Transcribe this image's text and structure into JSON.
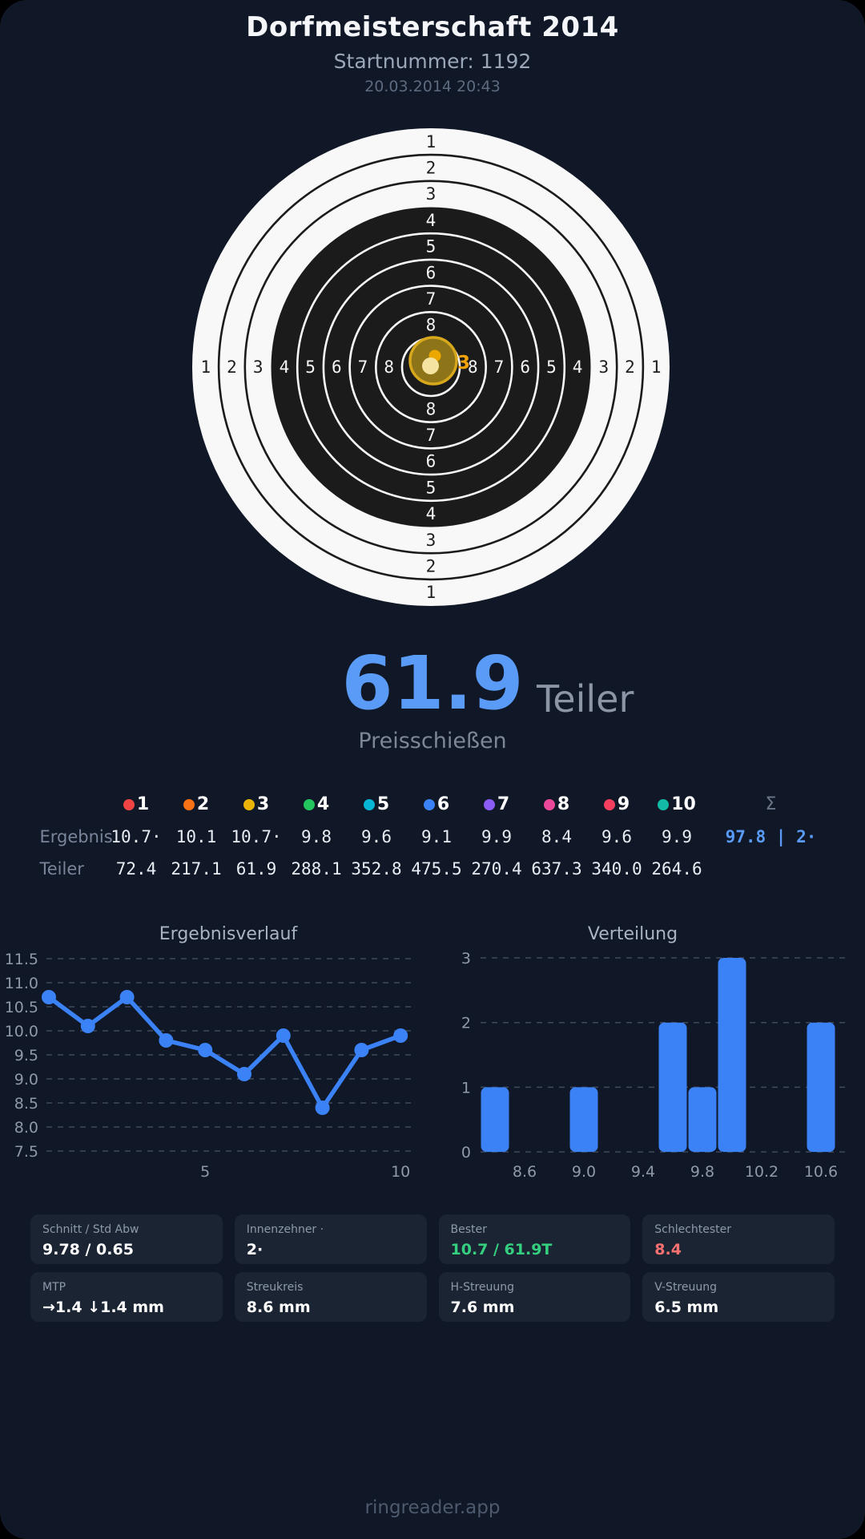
{
  "header": {
    "title": "Dorfmeisterschaft 2014",
    "subtitle": "Startnummer: 1192",
    "datetime": "20.03.2014 20:43"
  },
  "score": {
    "value": "61.9",
    "unit": "Teiler",
    "event": "Preisschießen"
  },
  "target": {
    "ring_labels": [
      "1",
      "2",
      "3",
      "4",
      "5",
      "6",
      "7",
      "8"
    ],
    "shot_marker": {
      "label": "3",
      "label_color": "#f2a208",
      "ring_color": "#d8a81c",
      "fill_color": "#8d7418"
    }
  },
  "table": {
    "ergebnis_label": "Ergebnis",
    "teiler_label": "Teiler",
    "sum_symbol": "Σ",
    "sum_value": "97.8 | 2·"
  },
  "shots": [
    {
      "nr": "1",
      "color": "#ef4444",
      "ergebnis": "10.7·",
      "teiler": "72.4"
    },
    {
      "nr": "2",
      "color": "#f97316",
      "ergebnis": "10.1",
      "teiler": "217.1"
    },
    {
      "nr": "3",
      "color": "#eab308",
      "ergebnis": "10.7·",
      "teiler": "61.9"
    },
    {
      "nr": "4",
      "color": "#22c55e",
      "ergebnis": "9.8",
      "teiler": "288.1"
    },
    {
      "nr": "5",
      "color": "#06b6d4",
      "ergebnis": "9.6",
      "teiler": "352.8"
    },
    {
      "nr": "6",
      "color": "#3b82f6",
      "ergebnis": "9.1",
      "teiler": "475.5"
    },
    {
      "nr": "7",
      "color": "#8b5cf6",
      "ergebnis": "9.9",
      "teiler": "270.4"
    },
    {
      "nr": "8",
      "color": "#ec4899",
      "ergebnis": "8.4",
      "teiler": "637.3"
    },
    {
      "nr": "9",
      "color": "#f43f5e",
      "ergebnis": "9.6",
      "teiler": "340.0"
    },
    {
      "nr": "10",
      "color": "#14b8a6",
      "ergebnis": "9.9",
      "teiler": "264.6"
    }
  ],
  "chart_data": [
    {
      "type": "line",
      "title": "Ergebnisverlauf",
      "x": [
        1,
        2,
        3,
        4,
        5,
        6,
        7,
        8,
        9,
        10
      ],
      "values": [
        10.7,
        10.1,
        10.7,
        9.8,
        9.6,
        9.1,
        9.9,
        8.4,
        9.6,
        9.9
      ],
      "ylim": [
        7.5,
        11.5
      ],
      "yticks": [
        11.5,
        11.0,
        10.5,
        10.0,
        9.5,
        9.0,
        8.5,
        8.0,
        7.5
      ],
      "xticks": [
        5,
        10
      ],
      "grid": true,
      "color": "#3b82f6"
    },
    {
      "type": "bar",
      "title": "Verteilung",
      "bin_centers": [
        8.4,
        9.0,
        9.6,
        9.8,
        10.0,
        10.6
      ],
      "values": [
        1,
        1,
        2,
        1,
        3,
        2
      ],
      "xlim": [
        8.2,
        10.8
      ],
      "xticks": [
        8.6,
        9.0,
        9.4,
        9.8,
        10.2,
        10.6
      ],
      "ylim": [
        0,
        3
      ],
      "yticks": [
        0,
        1,
        2,
        3
      ],
      "grid": true,
      "color": "#3b82f6"
    }
  ],
  "stats": [
    {
      "label": "Schnitt / Std Abw",
      "value": "9.78 / 0.65",
      "color": "#ffffff"
    },
    {
      "label": "Innenzehner ·",
      "value": "2·",
      "color": "#ffffff"
    },
    {
      "label": "Bester",
      "value": "10.7 / 61.9T",
      "color": "#35d07f"
    },
    {
      "label": "Schlechtester",
      "value": "8.4",
      "color": "#f87171"
    },
    {
      "label": "MTP",
      "value": "→1.4 ↓1.4 mm",
      "color": "#ffffff"
    },
    {
      "label": "Streukreis",
      "value": "8.6 mm",
      "color": "#ffffff"
    },
    {
      "label": "H-Streuung",
      "value": "7.6 mm",
      "color": "#ffffff"
    },
    {
      "label": "V-Streuung",
      "value": "6.5 mm",
      "color": "#ffffff"
    }
  ],
  "footer": {
    "brand": "ringreader.app"
  }
}
